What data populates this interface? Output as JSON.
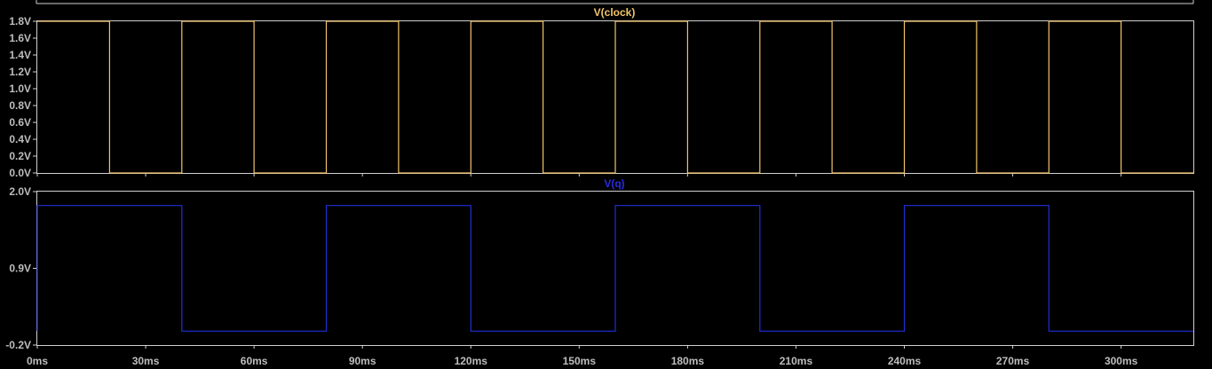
{
  "colors": {
    "background": "#000000",
    "frame": "#d0d0d0",
    "tick_label": "#bdbdbd",
    "clock_trace": "#f2c46a",
    "clock_title": "#f2c46a",
    "q_trace": "#1f2fd6",
    "q_title": "#2a2ae0"
  },
  "chart_data": [
    {
      "type": "line",
      "title": "V(clock)",
      "xlabel": "",
      "ylabel": "",
      "xlim": [
        0,
        320
      ],
      "ylim": [
        0,
        1.8
      ],
      "x_unit": "ms",
      "y_ticks": [
        "0.0V",
        "0.2V",
        "0.4V",
        "0.6V",
        "0.8V",
        "1.0V",
        "1.2V",
        "1.4V",
        "1.6V",
        "1.8V"
      ],
      "y_tick_values": [
        0,
        0.2,
        0.4,
        0.6,
        0.8,
        1.0,
        1.2,
        1.4,
        1.6,
        1.8
      ],
      "series": [
        {
          "name": "V(clock)",
          "x": [
            0,
            20,
            20,
            40,
            40,
            60,
            60,
            80,
            80,
            100,
            100,
            120,
            120,
            140,
            140,
            160,
            160,
            180,
            180,
            200,
            200,
            220,
            220,
            240,
            240,
            260,
            260,
            280,
            280,
            300,
            300,
            320
          ],
          "values": [
            1.8,
            1.8,
            0,
            0,
            1.8,
            1.8,
            0,
            0,
            1.8,
            1.8,
            0,
            0,
            1.8,
            1.8,
            0,
            0,
            1.8,
            1.8,
            0,
            0,
            1.8,
            1.8,
            0,
            0,
            1.8,
            1.8,
            0,
            0,
            1.8,
            1.8,
            0,
            0
          ]
        }
      ]
    },
    {
      "type": "line",
      "title": "V(q)",
      "xlabel": "",
      "ylabel": "",
      "xlim": [
        0,
        320
      ],
      "ylim": [
        -0.2,
        2.0
      ],
      "x_unit": "ms",
      "x_ticks": [
        "0ms",
        "30ms",
        "60ms",
        "90ms",
        "120ms",
        "150ms",
        "180ms",
        "210ms",
        "240ms",
        "270ms",
        "300ms"
      ],
      "x_tick_values": [
        0,
        30,
        60,
        90,
        120,
        150,
        180,
        210,
        240,
        270,
        300
      ],
      "y_ticks": [
        "-0.2V",
        "0.9V",
        "2.0V"
      ],
      "y_tick_values": [
        -0.2,
        0.9,
        2.0
      ],
      "series": [
        {
          "name": "V(q)",
          "x": [
            0,
            0,
            40,
            40,
            80,
            80,
            120,
            120,
            160,
            160,
            200,
            200,
            240,
            240,
            280,
            280,
            320
          ],
          "values": [
            0.0,
            1.8,
            1.8,
            0.0,
            0.0,
            1.8,
            1.8,
            0.0,
            0.0,
            1.8,
            1.8,
            0.0,
            0.0,
            1.8,
            1.8,
            0.0,
            0.0
          ]
        }
      ]
    }
  ]
}
